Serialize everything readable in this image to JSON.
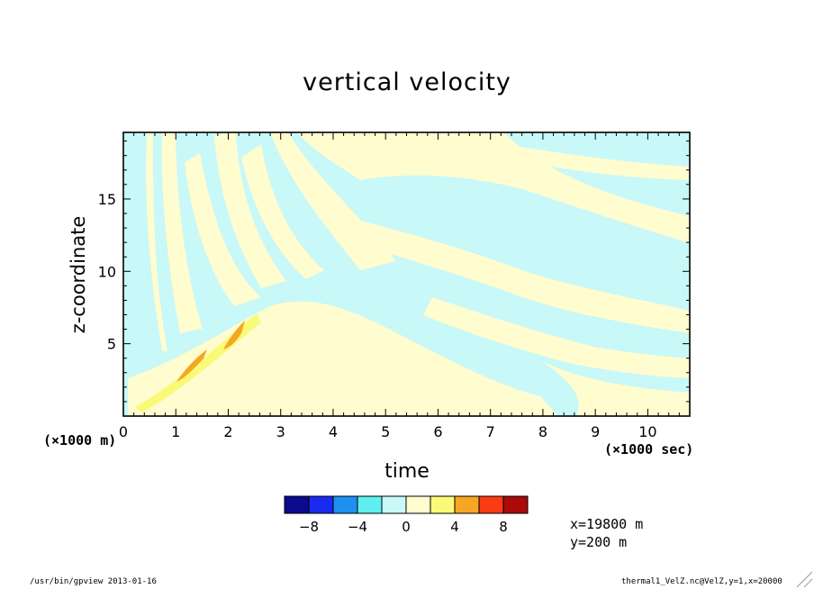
{
  "chart_data": {
    "type": "heatmap",
    "title": "vertical velocity",
    "xlabel": "time",
    "ylabel": "z-coordinate",
    "x_unit": "(×1000 sec)",
    "y_unit": "(×1000 m)",
    "xlim": [
      0,
      10.8
    ],
    "ylim": [
      0,
      19.6
    ],
    "x_ticks": [
      0,
      1,
      2,
      3,
      4,
      5,
      6,
      7,
      8,
      9,
      10
    ],
    "x_tick_labels": [
      "0",
      "1",
      "2",
      "3",
      "4",
      "5",
      "6",
      "7",
      "8",
      "9",
      "10"
    ],
    "y_ticks": [
      5,
      10,
      15
    ],
    "y_tick_labels": [
      "5",
      "10",
      "15"
    ],
    "colorbar": {
      "colors": [
        "#0a0a8c",
        "#1a2af0",
        "#1e90f0",
        "#5ef0f0",
        "#c8f8f8",
        "#fffcd0",
        "#fafa78",
        "#f5a623",
        "#fa3c14",
        "#aa0a0a"
      ],
      "tick_values": [
        -8,
        -4,
        0,
        4,
        8
      ],
      "tick_labels": [
        "-8",
        "-4",
        "0",
        "4",
        "8"
      ],
      "range": [
        -10,
        10
      ]
    },
    "annotations": [
      "x=19800 m",
      "y=200 m"
    ]
  },
  "footer": {
    "left": "/usr/bin/gpview  2013-01-16",
    "right": "thermal1_VelZ.nc@VelZ,y=1,x=20000"
  }
}
